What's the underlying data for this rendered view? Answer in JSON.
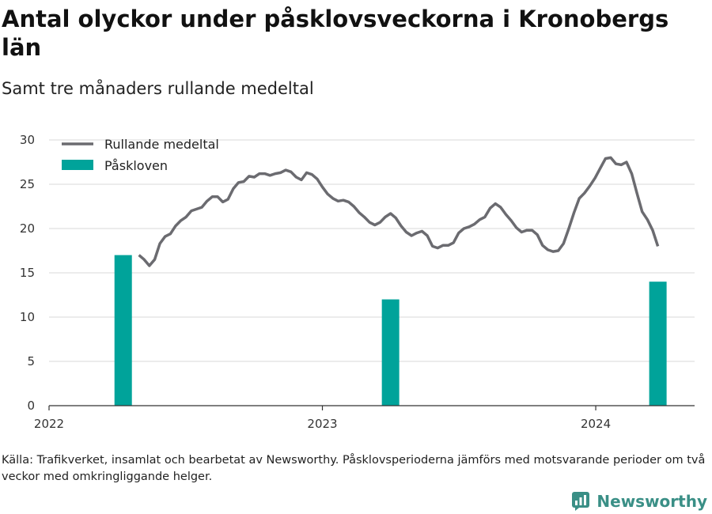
{
  "title": "Antal olyckor under påsklovsveckorna i Kronobergs län",
  "subtitle": "Samt tre månaders rullande medeltal",
  "footnote": "Källa: Trafikverket, insamlat och bearbetat av Newsworthy. Påsklovsperioderna jämförs med motsvarande perioder om två veckor med omkringliggande helger.",
  "brand": {
    "name": "Newsworthy",
    "icon": "newsworthy-logo-icon",
    "color": "#3a8f86"
  },
  "chart_data": {
    "type": "bar+line",
    "x_range": [
      "2022-01-01",
      "2024-05-12"
    ],
    "ylim": [
      0,
      30
    ],
    "yticks": [
      0,
      5,
      10,
      15,
      20,
      25,
      30
    ],
    "xticks": [
      {
        "date": "2022-01-01",
        "label": "2022"
      },
      {
        "date": "2023-01-01",
        "label": "2023"
      },
      {
        "date": "2024-01-01",
        "label": "2024"
      }
    ],
    "grid": "horizontal",
    "legend_position": "top-left",
    "series": [
      {
        "name": "Påskloven",
        "type": "bar",
        "color": "#00a39a",
        "points": [
          {
            "date": "2022-04-10",
            "value": 17
          },
          {
            "date": "2023-04-02",
            "value": 12
          },
          {
            "date": "2024-03-24",
            "value": 14
          }
        ]
      },
      {
        "name": "Rullande medeltal",
        "type": "line",
        "color": "#6b6b70",
        "points": [
          {
            "date": "2022-05-01",
            "value": 17.0
          },
          {
            "date": "2022-05-08",
            "value": 16.5
          },
          {
            "date": "2022-05-15",
            "value": 15.8
          },
          {
            "date": "2022-05-22",
            "value": 16.5
          },
          {
            "date": "2022-05-29",
            "value": 18.3
          },
          {
            "date": "2022-06-05",
            "value": 19.1
          },
          {
            "date": "2022-06-12",
            "value": 19.4
          },
          {
            "date": "2022-06-19",
            "value": 20.3
          },
          {
            "date": "2022-06-26",
            "value": 20.9
          },
          {
            "date": "2022-07-03",
            "value": 21.3
          },
          {
            "date": "2022-07-10",
            "value": 22.0
          },
          {
            "date": "2022-07-17",
            "value": 22.2
          },
          {
            "date": "2022-07-24",
            "value": 22.4
          },
          {
            "date": "2022-07-31",
            "value": 23.1
          },
          {
            "date": "2022-08-07",
            "value": 23.6
          },
          {
            "date": "2022-08-14",
            "value": 23.6
          },
          {
            "date": "2022-08-21",
            "value": 23.0
          },
          {
            "date": "2022-08-28",
            "value": 23.3
          },
          {
            "date": "2022-09-04",
            "value": 24.5
          },
          {
            "date": "2022-09-11",
            "value": 25.2
          },
          {
            "date": "2022-09-18",
            "value": 25.3
          },
          {
            "date": "2022-09-25",
            "value": 25.9
          },
          {
            "date": "2022-10-02",
            "value": 25.8
          },
          {
            "date": "2022-10-09",
            "value": 26.2
          },
          {
            "date": "2022-10-16",
            "value": 26.2
          },
          {
            "date": "2022-10-23",
            "value": 26.0
          },
          {
            "date": "2022-10-30",
            "value": 26.2
          },
          {
            "date": "2022-11-06",
            "value": 26.3
          },
          {
            "date": "2022-11-13",
            "value": 26.6
          },
          {
            "date": "2022-11-20",
            "value": 26.4
          },
          {
            "date": "2022-11-27",
            "value": 25.8
          },
          {
            "date": "2022-12-04",
            "value": 25.5
          },
          {
            "date": "2022-12-11",
            "value": 26.3
          },
          {
            "date": "2022-12-18",
            "value": 26.1
          },
          {
            "date": "2022-12-25",
            "value": 25.6
          },
          {
            "date": "2023-01-01",
            "value": 24.7
          },
          {
            "date": "2023-01-08",
            "value": 23.9
          },
          {
            "date": "2023-01-15",
            "value": 23.4
          },
          {
            "date": "2023-01-22",
            "value": 23.1
          },
          {
            "date": "2023-01-29",
            "value": 23.2
          },
          {
            "date": "2023-02-05",
            "value": 23.0
          },
          {
            "date": "2023-02-12",
            "value": 22.5
          },
          {
            "date": "2023-02-19",
            "value": 21.8
          },
          {
            "date": "2023-02-26",
            "value": 21.3
          },
          {
            "date": "2023-03-05",
            "value": 20.7
          },
          {
            "date": "2023-03-12",
            "value": 20.4
          },
          {
            "date": "2023-03-19",
            "value": 20.7
          },
          {
            "date": "2023-03-26",
            "value": 21.3
          },
          {
            "date": "2023-04-02",
            "value": 21.7
          },
          {
            "date": "2023-04-09",
            "value": 21.2
          },
          {
            "date": "2023-04-16",
            "value": 20.3
          },
          {
            "date": "2023-04-23",
            "value": 19.6
          },
          {
            "date": "2023-04-30",
            "value": 19.2
          },
          {
            "date": "2023-05-07",
            "value": 19.5
          },
          {
            "date": "2023-05-14",
            "value": 19.7
          },
          {
            "date": "2023-05-21",
            "value": 19.2
          },
          {
            "date": "2023-05-28",
            "value": 18.0
          },
          {
            "date": "2023-06-04",
            "value": 17.8
          },
          {
            "date": "2023-06-11",
            "value": 18.1
          },
          {
            "date": "2023-06-18",
            "value": 18.1
          },
          {
            "date": "2023-06-25",
            "value": 18.4
          },
          {
            "date": "2023-07-02",
            "value": 19.5
          },
          {
            "date": "2023-07-09",
            "value": 20.0
          },
          {
            "date": "2023-07-16",
            "value": 20.2
          },
          {
            "date": "2023-07-23",
            "value": 20.5
          },
          {
            "date": "2023-07-30",
            "value": 21.0
          },
          {
            "date": "2023-08-06",
            "value": 21.3
          },
          {
            "date": "2023-08-13",
            "value": 22.3
          },
          {
            "date": "2023-08-20",
            "value": 22.8
          },
          {
            "date": "2023-08-27",
            "value": 22.4
          },
          {
            "date": "2023-09-03",
            "value": 21.6
          },
          {
            "date": "2023-09-10",
            "value": 20.9
          },
          {
            "date": "2023-09-17",
            "value": 20.1
          },
          {
            "date": "2023-09-24",
            "value": 19.6
          },
          {
            "date": "2023-10-01",
            "value": 19.8
          },
          {
            "date": "2023-10-08",
            "value": 19.8
          },
          {
            "date": "2023-10-15",
            "value": 19.3
          },
          {
            "date": "2023-10-22",
            "value": 18.1
          },
          {
            "date": "2023-10-29",
            "value": 17.6
          },
          {
            "date": "2023-11-05",
            "value": 17.4
          },
          {
            "date": "2023-11-12",
            "value": 17.5
          },
          {
            "date": "2023-11-19",
            "value": 18.3
          },
          {
            "date": "2023-11-26",
            "value": 20.0
          },
          {
            "date": "2023-12-03",
            "value": 21.8
          },
          {
            "date": "2023-12-10",
            "value": 23.4
          },
          {
            "date": "2023-12-17",
            "value": 24.0
          },
          {
            "date": "2023-12-24",
            "value": 24.8
          },
          {
            "date": "2023-12-31",
            "value": 25.7
          },
          {
            "date": "2024-01-07",
            "value": 26.8
          },
          {
            "date": "2024-01-14",
            "value": 27.9
          },
          {
            "date": "2024-01-21",
            "value": 28.0
          },
          {
            "date": "2024-01-28",
            "value": 27.3
          },
          {
            "date": "2024-02-04",
            "value": 27.2
          },
          {
            "date": "2024-02-11",
            "value": 27.5
          },
          {
            "date": "2024-02-18",
            "value": 26.2
          },
          {
            "date": "2024-02-25",
            "value": 24.0
          },
          {
            "date": "2024-03-03",
            "value": 21.9
          },
          {
            "date": "2024-03-10",
            "value": 21.0
          },
          {
            "date": "2024-03-17",
            "value": 19.8
          },
          {
            "date": "2024-03-24",
            "value": 18.0
          }
        ]
      }
    ]
  }
}
